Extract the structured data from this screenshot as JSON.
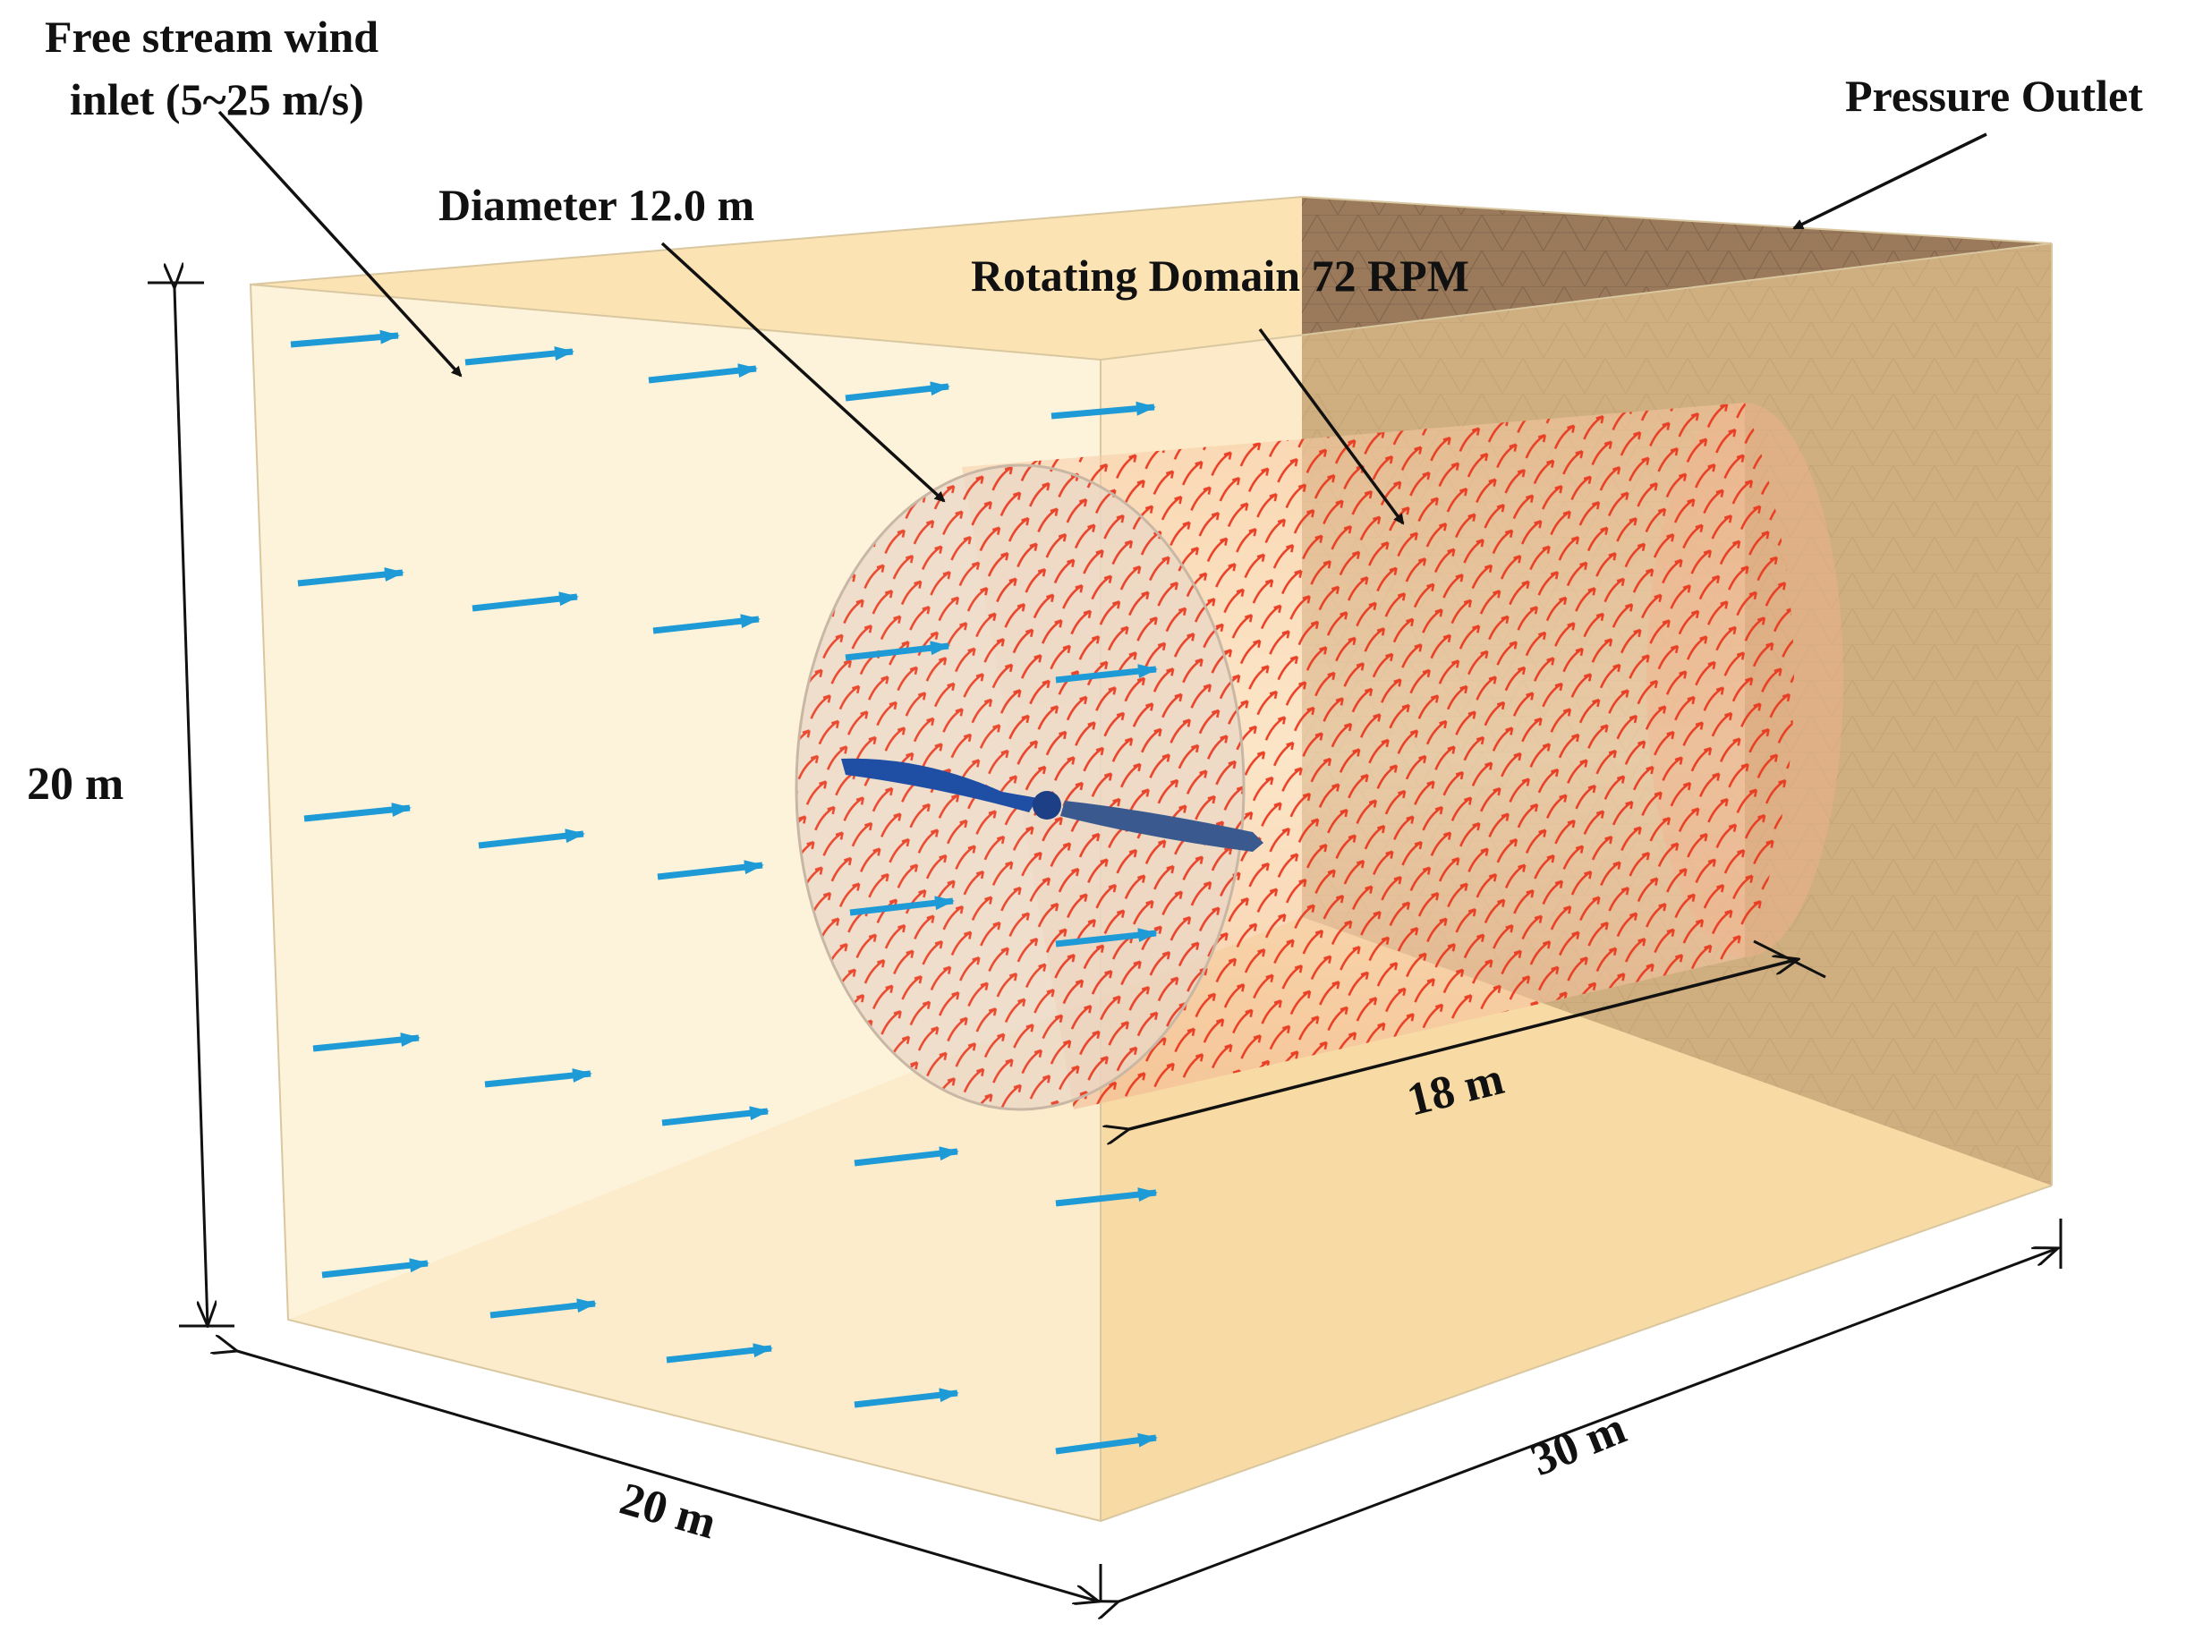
{
  "labels": {
    "inlet_line1": "Free stream wind",
    "inlet_line2": "inlet (5~25 m/s)",
    "outlet": "Pressure Outlet",
    "diameter": "Diameter 12.0 m",
    "rotating": "Rotating Domain 72 RPM",
    "height": "20 m",
    "width": "20 m",
    "length": "30 m",
    "rotor_length": "18 m"
  },
  "colors": {
    "box_face": "#fde9be",
    "box_side": "#f8d79a",
    "outlet_wall": "#9b7a5b",
    "mesh_line": "#6f5640",
    "inflow_arrow": "#1e9ad6",
    "rotating_arrow": "#e8391f",
    "blade": "#1f4fa5",
    "text": "#111111"
  },
  "icons": {
    "inflow": "blue-velocity-arrow",
    "rotation": "red-tangential-arrow"
  }
}
